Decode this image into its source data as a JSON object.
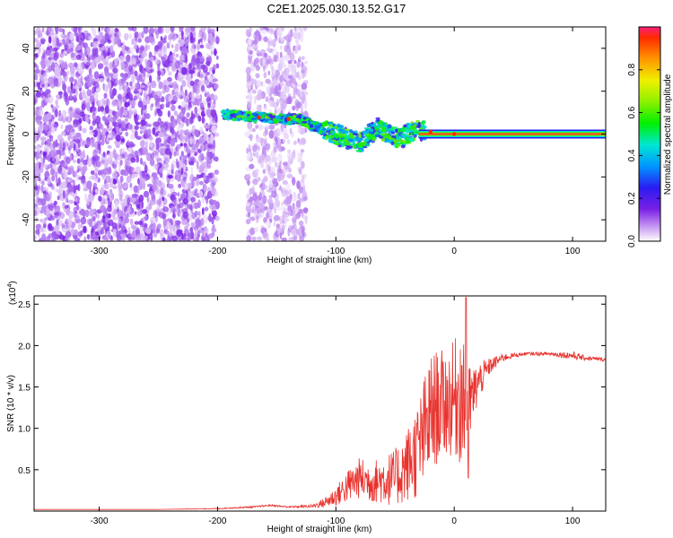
{
  "figure_title": "C2E1.2025.030.13.52.G17",
  "colorbar": {
    "label": "Normalized spectral amplitude",
    "ticks": [
      "0.0",
      "0.2",
      "0.4",
      "0.6",
      "0.8"
    ],
    "tick_values": [
      0,
      0.2,
      0.4,
      0.6,
      0.8
    ],
    "range": [
      0,
      1
    ]
  },
  "chart_data": [
    {
      "type": "heatmap",
      "title": "",
      "xlabel": "Height of straight line (km)",
      "ylabel": "Frequency (Hz)",
      "xlim": [
        -355,
        128
      ],
      "ylim": [
        -50,
        50
      ],
      "x_ticks": [
        -300,
        -200,
        -100,
        0,
        100
      ],
      "x_tick_labels": [
        "-300",
        "-200",
        "-100",
        "0",
        "100"
      ],
      "y_ticks": [
        -40,
        -20,
        0,
        20,
        40
      ],
      "y_tick_labels": [
        "-40",
        "-20",
        "0",
        "20",
        "40"
      ],
      "colormap": "rainbow (violet low, red high)",
      "regions": [
        {
          "x_range": [
            -355,
            -200
          ],
          "pattern": "dense noise speckle",
          "typical_amplitude": 0.08
        },
        {
          "x_range": [
            -175,
            -125
          ],
          "pattern": "noise speckle band",
          "typical_amplitude": 0.05
        },
        {
          "x_range": [
            -195,
            -30
          ],
          "pattern": "descending signal track",
          "freq_start_hz": 9,
          "freq_end_hz": -5,
          "typical_amplitude": 0.35
        },
        {
          "x_range": [
            -30,
            128
          ],
          "pattern": "steady signal line",
          "freq_hz": 0,
          "typical_amplitude": 1.0
        }
      ],
      "signal_track": [
        {
          "x": -190,
          "f": 9
        },
        {
          "x": -170,
          "f": 8
        },
        {
          "x": -150,
          "f": 7
        },
        {
          "x": -130,
          "f": 7
        },
        {
          "x": -120,
          "f": 4
        },
        {
          "x": -100,
          "f": 0
        },
        {
          "x": -90,
          "f": -2
        },
        {
          "x": -80,
          "f": -4
        },
        {
          "x": -65,
          "f": 3
        },
        {
          "x": -55,
          "f": 0
        },
        {
          "x": -45,
          "f": -2
        },
        {
          "x": -35,
          "f": 2
        },
        {
          "x": -20,
          "f": 1
        },
        {
          "x": 0,
          "f": 0
        },
        {
          "x": 128,
          "f": 0
        }
      ]
    },
    {
      "type": "line",
      "title": "",
      "xlabel": "Height of straight line (km)",
      "ylabel": "SNR (10 * v/v)",
      "y_scale_label": "(x10",
      "y_scale_exponent": "4",
      "xlim": [
        -355,
        128
      ],
      "ylim": [
        0,
        2.6
      ],
      "x_ticks": [
        -300,
        -200,
        -100,
        0,
        100
      ],
      "x_tick_labels": [
        "-300",
        "-200",
        "-100",
        "0",
        "100"
      ],
      "y_ticks": [
        0.5,
        1.0,
        1.5,
        2.0,
        2.5
      ],
      "y_tick_labels": [
        "0.5",
        "1.0",
        "1.5",
        "2.0",
        "2.5"
      ],
      "series": [
        {
          "color": "#e8322d",
          "x": [
            -355,
            -300,
            -250,
            -200,
            -170,
            -155,
            -140,
            -120,
            -110,
            -100,
            -90,
            -80,
            -70,
            -60,
            -50,
            -40,
            -30,
            -25,
            -20,
            -15,
            -10,
            0,
            5,
            10,
            15,
            20,
            30,
            40,
            50,
            60,
            80,
            100,
            110,
            128
          ],
          "y": [
            0.02,
            0.02,
            0.02,
            0.03,
            0.05,
            0.07,
            0.05,
            0.06,
            0.1,
            0.18,
            0.3,
            0.4,
            0.35,
            0.38,
            0.4,
            0.55,
            0.75,
            0.95,
            1.15,
            1.25,
            1.3,
            1.35,
            1.45,
            1.2,
            1.35,
            1.55,
            1.75,
            1.85,
            1.88,
            1.9,
            1.9,
            1.88,
            1.85,
            1.83
          ],
          "noise_amplitude": [
            0,
            0,
            0,
            0.005,
            0.01,
            0.01,
            0.01,
            0.02,
            0.06,
            0.12,
            0.2,
            0.25,
            0.25,
            0.3,
            0.35,
            0.45,
            0.6,
            0.7,
            0.75,
            0.7,
            0.65,
            0.7,
            0.9,
            0.6,
            0.4,
            0.25,
            0.1,
            0.05,
            0.03,
            0.02,
            0.02,
            0.05,
            0.03,
            0.02
          ]
        }
      ]
    }
  ]
}
